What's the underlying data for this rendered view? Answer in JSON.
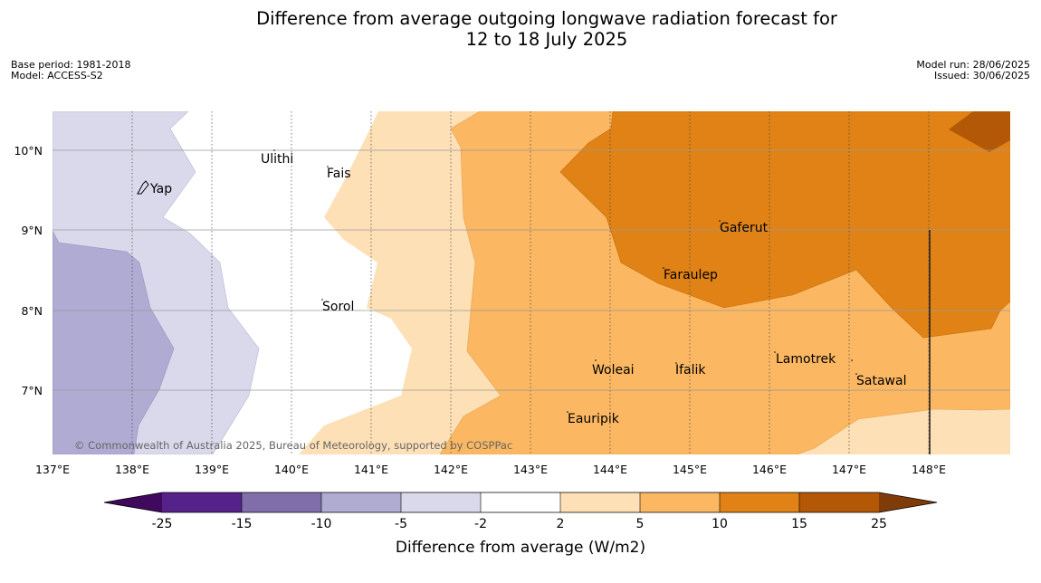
{
  "title_line1": "Difference from average outgoing longwave radiation forecast for",
  "title_line2": "12 to 18 July 2025",
  "meta_left": {
    "base_period": "Base period: 1981-2018",
    "model": "Model: ACCESS-S2"
  },
  "meta_right": {
    "model_run": "Model run: 28/06/2025",
    "issued": "Issued: 30/06/2025"
  },
  "credit": "© Commonwealth of Australia 2025, Bureau of Meteorology, supported by COSPPac",
  "lon_ticks": [
    "137°E",
    "138°E",
    "139°E",
    "140°E",
    "141°E",
    "142°E",
    "143°E",
    "144°E",
    "145°E",
    "146°E",
    "147°E",
    "148°E"
  ],
  "lat_ticks": [
    "10°N",
    "9°N",
    "8°N",
    "7°N"
  ],
  "places": [
    {
      "name": "Yap"
    },
    {
      "name": "Ulithi"
    },
    {
      "name": "Fais"
    },
    {
      "name": "Gaferut"
    },
    {
      "name": "Faraulep"
    },
    {
      "name": "Sorol"
    },
    {
      "name": "Woleai"
    },
    {
      "name": "Ifalik"
    },
    {
      "name": "Lamotrek"
    },
    {
      "name": "Satawal"
    },
    {
      "name": "Eauripik"
    }
  ],
  "colorbar": {
    "label": "Difference from average (W/m2)",
    "ticks": [
      "-25",
      "-15",
      "-10",
      "-5",
      "-2",
      "2",
      "5",
      "10",
      "15",
      "25"
    ],
    "colors": [
      "#3f0a5e",
      "#55228a",
      "#7f6eaa",
      "#b0abd2",
      "#d9d9eb",
      "#ffffff",
      "#fde0b6",
      "#fbb762",
      "#e08215",
      "#b35806",
      "#7f3b08"
    ]
  }
}
